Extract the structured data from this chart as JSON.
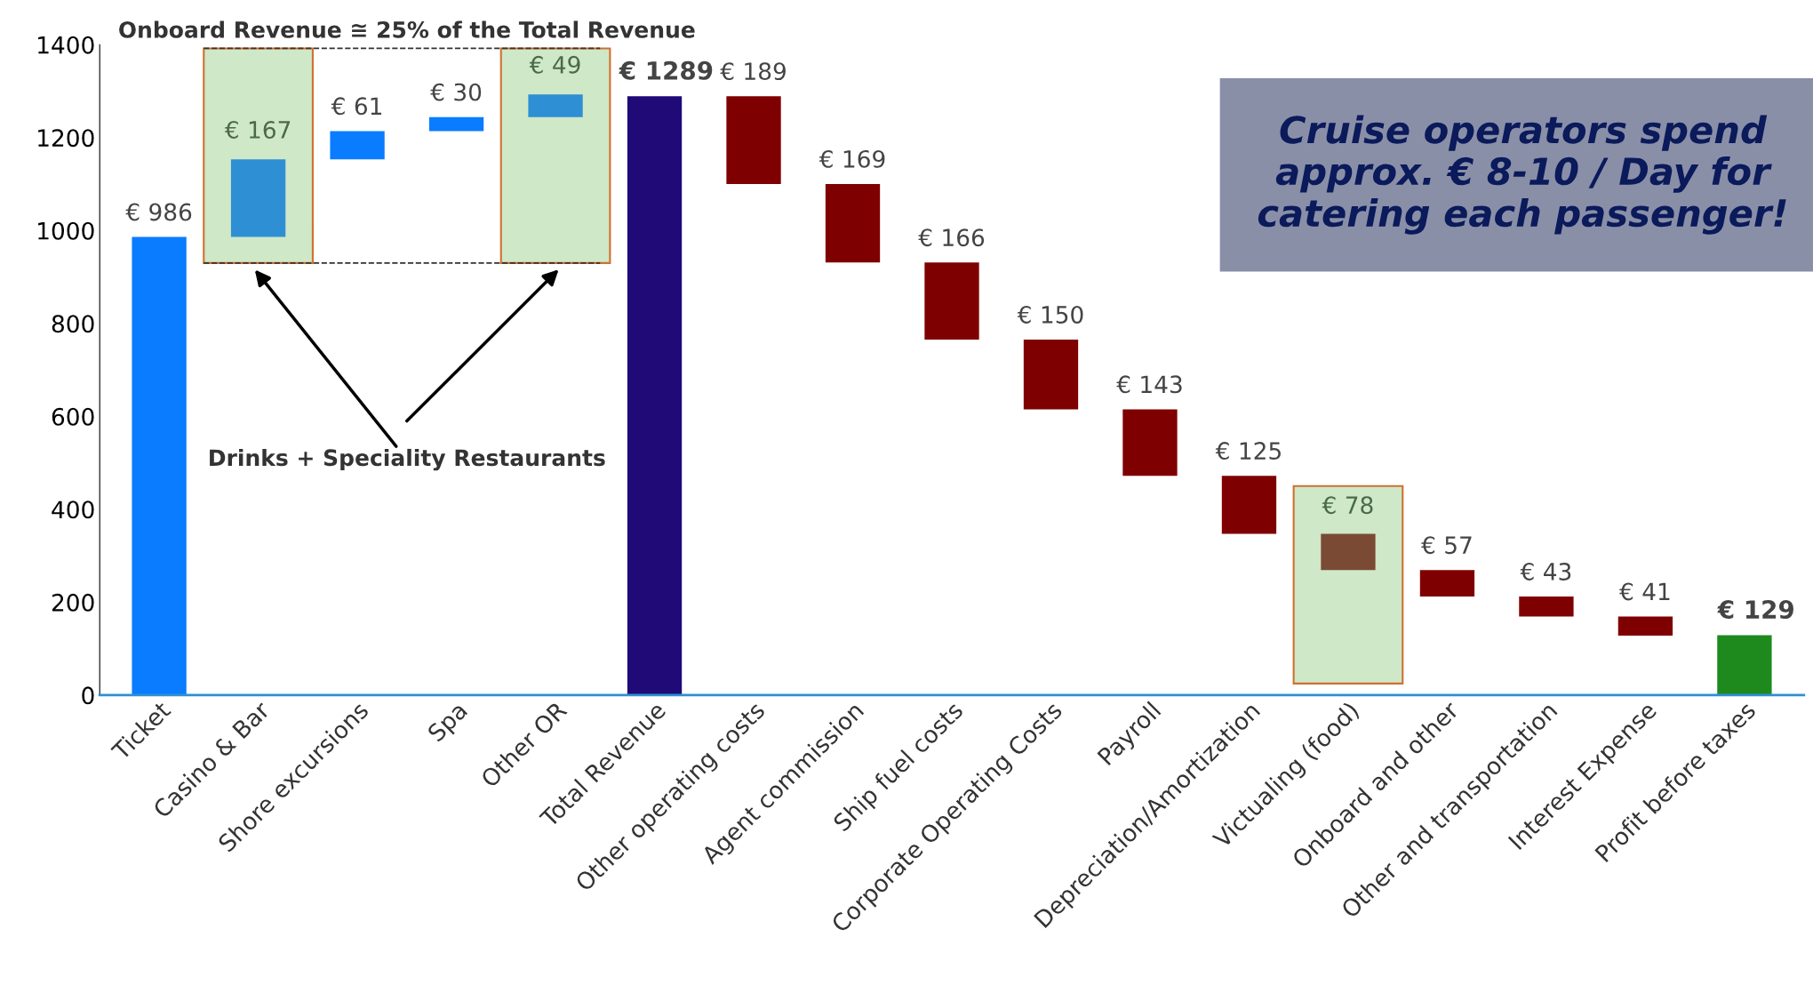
{
  "chart_data": {
    "type": "bar",
    "categories": [
      "Ticket",
      "Casino & Bar",
      "Shore excursions",
      "Spa",
      "Other OR",
      "Total Revenue",
      "Other operating costs",
      "Agent commission",
      "Ship fuel costs",
      "Corporate Operating Costs",
      "Payroll",
      "Depreciation/Amortization",
      "Victualing (food)",
      "Onboard and other",
      "Other and transportation",
      "Interest Expense",
      "Profit before taxes"
    ],
    "values": [
      986,
      167,
      61,
      30,
      49,
      1289,
      189,
      169,
      166,
      150,
      143,
      125,
      78,
      57,
      43,
      41,
      129
    ],
    "base": [
      0,
      986,
      1153,
      1214,
      1244,
      0,
      1100,
      931,
      765,
      615,
      472,
      347,
      269,
      212,
      169,
      128,
      0
    ],
    "colors": [
      "#0a7cff",
      "#2e8fd4",
      "#0a7cff",
      "#0a7cff",
      "#2e8fd4",
      "#1f0a78",
      "#7f0000",
      "#7f0000",
      "#7f0000",
      "#7f0000",
      "#7f0000",
      "#7f0000",
      "#7b4a35",
      "#7f0000",
      "#7f0000",
      "#7f0000",
      "#1e8a1e"
    ],
    "value_labels": [
      "€ 986",
      "€ 167",
      "€ 61",
      "€ 30",
      "€ 49",
      "€ 1289",
      "€ 189",
      "€ 169",
      "€ 166",
      "€ 150",
      "€ 143",
      "€ 125",
      "€ 78",
      "€ 57",
      "€ 43",
      "€ 41",
      "€ 129"
    ],
    "ylim": [
      0,
      1400
    ],
    "yticks": [
      0,
      200,
      400,
      600,
      800,
      1000,
      1200,
      1400
    ],
    "grid": false,
    "annotations": [
      "Onboard Revenue ≅ 25% of the Total Revenue",
      "Drinks + Speciality Restaurants",
      "Cruise operators spend approx. € 8-10 / Day for catering each passenger!"
    ]
  }
}
